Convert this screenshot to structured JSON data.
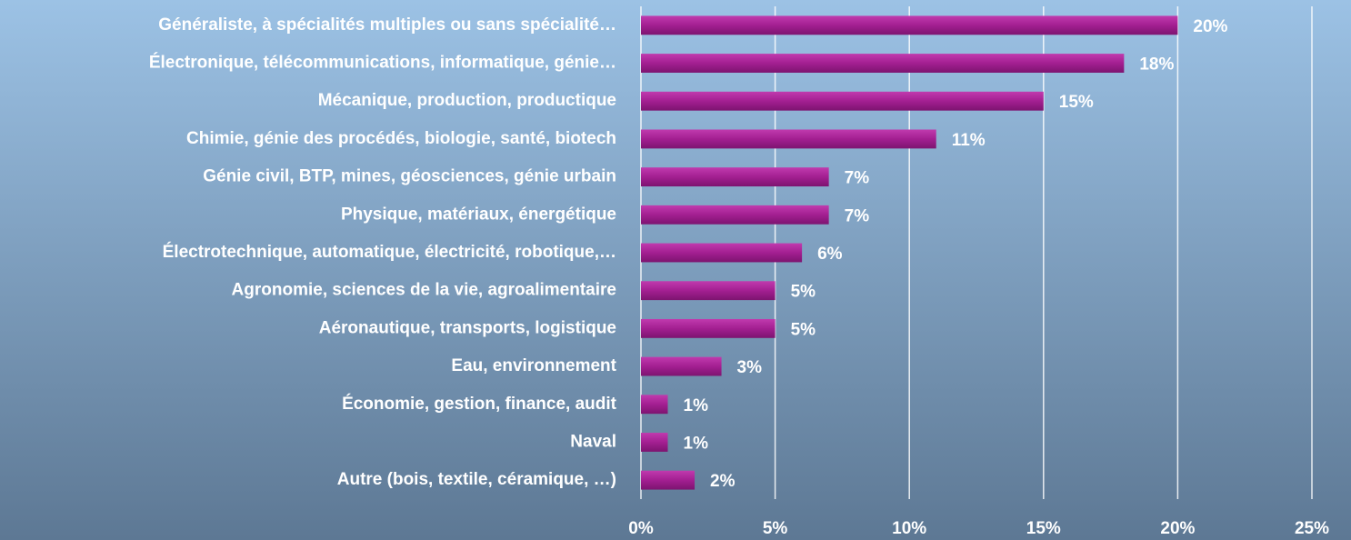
{
  "chart_data": {
    "type": "barh",
    "categories": [
      "Généraliste, à spécialités multiples ou sans spécialité…",
      "Électronique, télécommunications, informatique, génie…",
      "Mécanique, production, productique",
      "Chimie, génie des procédés, biologie, santé, biotech",
      "Génie civil, BTP, mines, géosciences, génie urbain",
      "Physique, matériaux, énergétique",
      "Électrotechnique, automatique, électricité, robotique,…",
      "Agronomie, sciences de la vie, agroalimentaire",
      "Aéronautique, transports, logistique",
      "Eau, environnement",
      "Économie, gestion, finance, audit",
      "Naval",
      "Autre (bois, textile, céramique, …)"
    ],
    "values": [
      20,
      18,
      15,
      11,
      7,
      7,
      6,
      5,
      5,
      3,
      1,
      1,
      2
    ],
    "value_labels": [
      "20%",
      "18%",
      "15%",
      "11%",
      "7%",
      "7%",
      "6%",
      "5%",
      "5%",
      "3%",
      "1%",
      "1%",
      "2%"
    ],
    "color": "#a31f91",
    "xlim": [
      0,
      25
    ],
    "xticks": [
      {
        "value": 0,
        "label": "0%"
      },
      {
        "value": 5,
        "label": "5%"
      },
      {
        "value": 10,
        "label": "10%"
      },
      {
        "value": 15,
        "label": "15%"
      },
      {
        "value": 20,
        "label": "20%"
      },
      {
        "value": 25,
        "label": "25%"
      }
    ],
    "grid": true
  }
}
